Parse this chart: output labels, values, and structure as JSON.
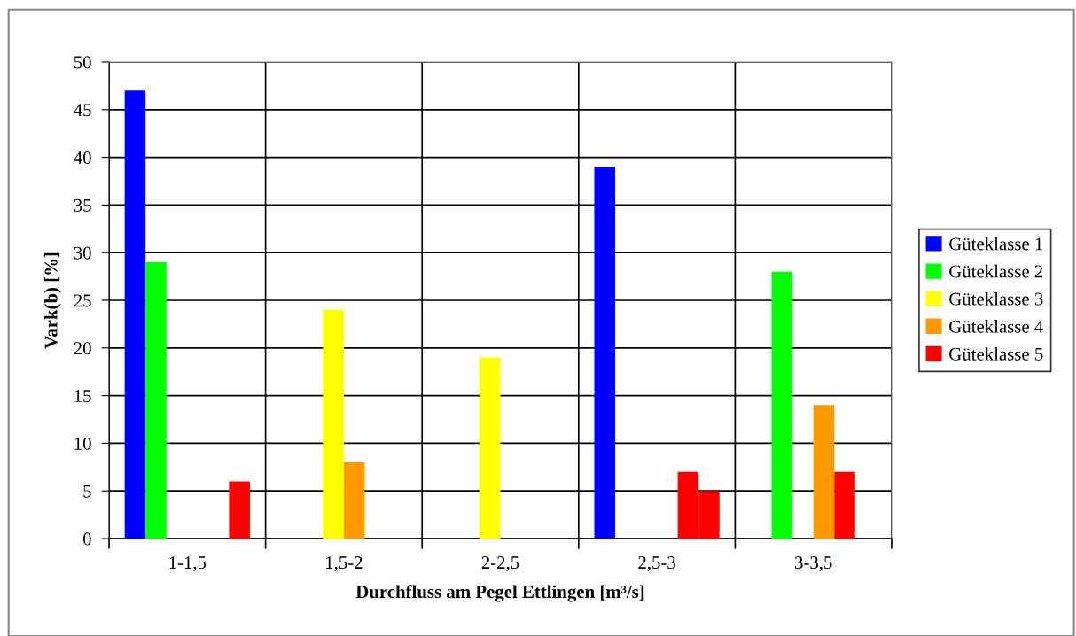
{
  "chart_data": {
    "type": "bar",
    "xlabel": "Durchfluss am Pegel Ettlingen [m³/s]",
    "ylabel": "Vark(b) [%]",
    "categories": [
      "1-1,5",
      "1,5-2",
      "2-2,5",
      "2,5-3",
      "3-3,5"
    ],
    "series": [
      {
        "name": "Güteklasse 1",
        "color": "#0000ff",
        "values": [
          47,
          null,
          null,
          39,
          null
        ]
      },
      {
        "name": "Güteklasse 2",
        "color": "#00ff00",
        "values": [
          29,
          null,
          null,
          null,
          28
        ]
      },
      {
        "name": "Güteklasse 3",
        "color": "#ffff00",
        "values": [
          null,
          24,
          19,
          null,
          null
        ]
      },
      {
        "name": "Güteklasse 4",
        "color": "#ff9900",
        "values": [
          null,
          8,
          null,
          null,
          14
        ]
      },
      {
        "name": "Güteklasse 5",
        "color": "#ff0000",
        "values": [
          null,
          null,
          null,
          7,
          7
        ]
      },
      {
        "color": "#ff0000",
        "values": [
          6,
          null,
          null,
          5,
          null
        ]
      }
    ],
    "ylim": [
      0,
      50
    ],
    "yticks": [
      0,
      5,
      10,
      15,
      20,
      25,
      30,
      35,
      40,
      45,
      50
    ],
    "grid": true,
    "legend": "right"
  }
}
